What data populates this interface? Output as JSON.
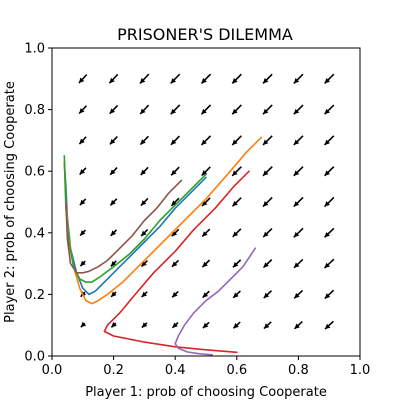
{
  "chart_data": {
    "type": "line",
    "title": "PRISONER'S DILEMMA",
    "xlabel": "Player 1: prob of choosing Cooperate",
    "ylabel": "Player 2: prob of choosing Cooperate",
    "xlim": [
      0,
      1
    ],
    "ylim": [
      0,
      1
    ],
    "x_ticks": [
      0,
      0.2,
      0.4,
      0.6,
      0.8,
      1
    ],
    "y_ticks": [
      0,
      0.2,
      0.4,
      0.6,
      0.8,
      1
    ],
    "x_tick_labels": [
      "0.0",
      "0.2",
      "0.4",
      "0.6",
      "0.8",
      "1.0"
    ],
    "y_tick_labels": [
      "0.0",
      "0.2",
      "0.4",
      "0.6",
      "0.8",
      "1.0"
    ],
    "grid": false,
    "vector_field": {
      "grid_start": 0.1,
      "grid_step": 0.1,
      "grid_count": 9,
      "direction": "toward (0, 0): both players drift to Defect",
      "color": "#000000"
    },
    "series": [
      {
        "color": "#1f77b4",
        "x": [
          0.5,
          0.45,
          0.4,
          0.35,
          0.3,
          0.25,
          0.2,
          0.17,
          0.14,
          0.12,
          0.1,
          0.08,
          0.06,
          0.05,
          0.045,
          0.04
        ],
        "y": [
          0.58,
          0.53,
          0.48,
          0.42,
          0.37,
          0.32,
          0.27,
          0.24,
          0.21,
          0.2,
          0.22,
          0.27,
          0.35,
          0.45,
          0.55,
          0.63
        ]
      },
      {
        "color": "#ff7f0e",
        "x": [
          0.68,
          0.63,
          0.57,
          0.5,
          0.43,
          0.36,
          0.29,
          0.23,
          0.18,
          0.15,
          0.13,
          0.11,
          0.09,
          0.07,
          0.055,
          0.045,
          0.04
        ],
        "y": [
          0.71,
          0.66,
          0.59,
          0.51,
          0.44,
          0.37,
          0.3,
          0.24,
          0.2,
          0.18,
          0.17,
          0.18,
          0.22,
          0.29,
          0.38,
          0.5,
          0.63
        ]
      },
      {
        "color": "#2ca02c",
        "x": [
          0.5,
          0.45,
          0.4,
          0.35,
          0.3,
          0.25,
          0.2,
          0.16,
          0.13,
          0.11,
          0.09,
          0.07,
          0.055,
          0.045,
          0.04
        ],
        "y": [
          0.59,
          0.54,
          0.49,
          0.44,
          0.38,
          0.33,
          0.29,
          0.26,
          0.24,
          0.24,
          0.25,
          0.29,
          0.37,
          0.48,
          0.65
        ]
      },
      {
        "color": "#d62728",
        "x": [
          0.64,
          0.59,
          0.53,
          0.46,
          0.4,
          0.33,
          0.27,
          0.22,
          0.18,
          0.17,
          0.2,
          0.3,
          0.4,
          0.5,
          0.6
        ],
        "y": [
          0.6,
          0.55,
          0.48,
          0.41,
          0.34,
          0.27,
          0.2,
          0.14,
          0.1,
          0.08,
          0.065,
          0.045,
          0.03,
          0.02,
          0.012
        ]
      },
      {
        "color": "#9467bd",
        "x": [
          0.66,
          0.62,
          0.58,
          0.54,
          0.5,
          0.46,
          0.43,
          0.41,
          0.4,
          0.41,
          0.44,
          0.48,
          0.52
        ],
        "y": [
          0.35,
          0.29,
          0.25,
          0.21,
          0.18,
          0.14,
          0.1,
          0.065,
          0.04,
          0.025,
          0.013,
          0.007,
          0.004
        ]
      },
      {
        "color": "#8c564b",
        "x": [
          0.42,
          0.38,
          0.34,
          0.3,
          0.26,
          0.22,
          0.18,
          0.15,
          0.12,
          0.1,
          0.08,
          0.06,
          0.05,
          0.045
        ],
        "y": [
          0.57,
          0.53,
          0.48,
          0.44,
          0.39,
          0.35,
          0.31,
          0.29,
          0.275,
          0.27,
          0.27,
          0.3,
          0.38,
          0.5
        ]
      }
    ]
  }
}
